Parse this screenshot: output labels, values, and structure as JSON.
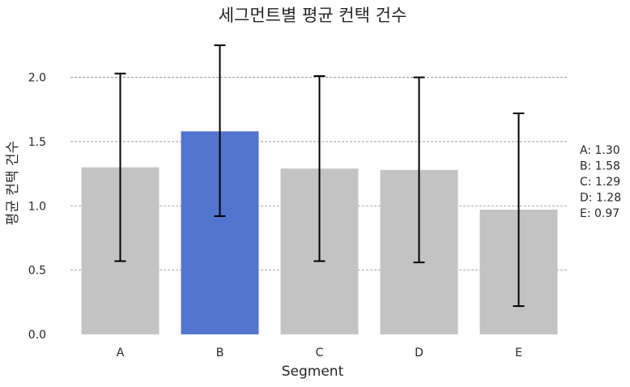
{
  "chart_data": {
    "type": "bar",
    "title": "세그먼트별 평균 컨택 건수",
    "xlabel": "Segment",
    "ylabel": "평균 컨택 건수",
    "categories": [
      "A",
      "B",
      "C",
      "D",
      "E"
    ],
    "values": [
      1.3,
      1.58,
      1.29,
      1.28,
      0.97
    ],
    "error_low": [
      0.57,
      0.92,
      0.57,
      0.56,
      0.22
    ],
    "error_high": [
      2.03,
      2.25,
      2.01,
      2.0,
      1.72
    ],
    "ylim": [
      0,
      2.35
    ],
    "yticks": [
      0.0,
      0.5,
      1.0,
      1.5,
      2.0
    ],
    "ytick_labels": [
      "0.0",
      "0.5",
      "1.0",
      "1.5",
      "2.0"
    ],
    "grid": true,
    "highlight_category": "B",
    "colors": {
      "default": "#c3c3c3",
      "highlight": "#5475cf"
    },
    "annotation_lines": [
      "A: 1.30",
      "B: 1.58",
      "C: 1.29",
      "D: 1.28",
      "E: 0.97"
    ]
  }
}
